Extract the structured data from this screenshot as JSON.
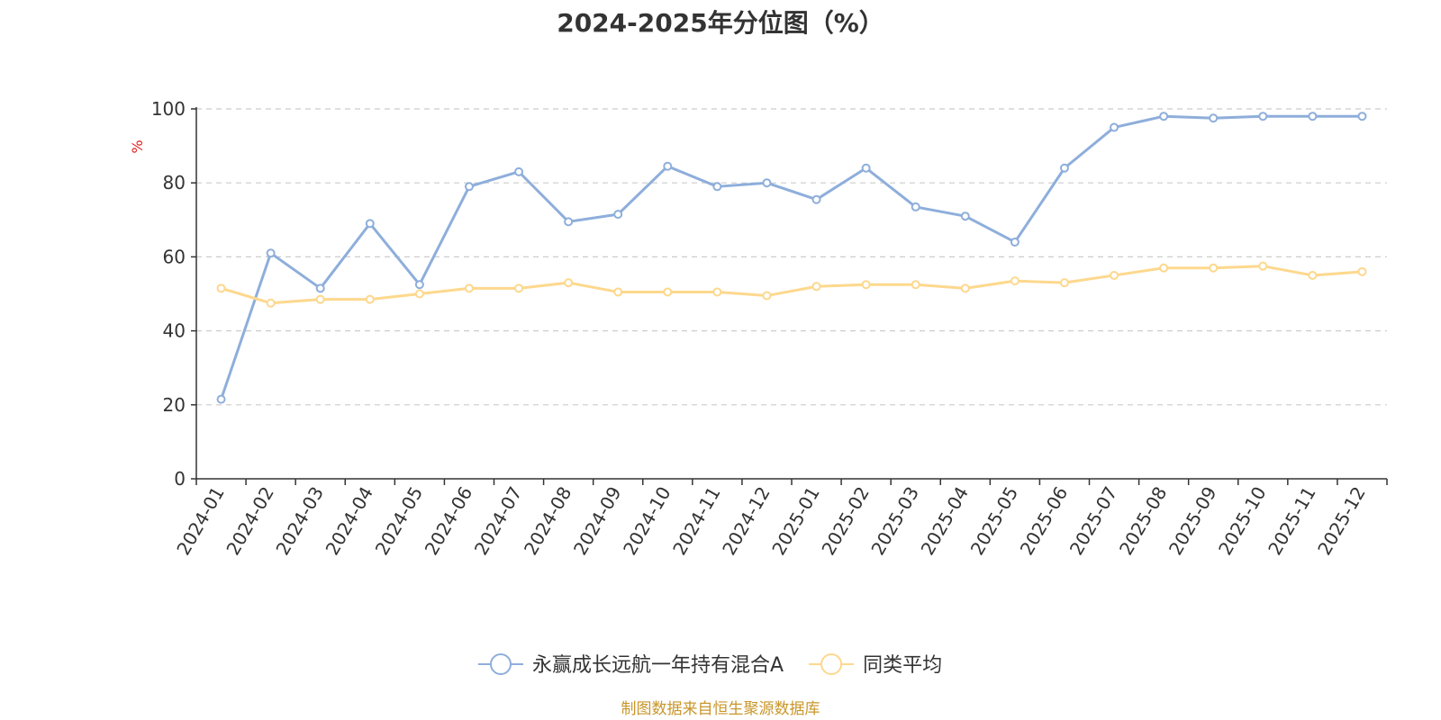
{
  "chart_data": {
    "type": "line",
    "title": "2024-2025年分位图（%）",
    "ylabel": "%",
    "xlabel": "",
    "ylim": [
      0,
      100
    ],
    "yticks": [
      0,
      20,
      40,
      60,
      80,
      100
    ],
    "grid": true,
    "legend_position": "bottom",
    "categories": [
      "2024-01",
      "2024-02",
      "2024-03",
      "2024-04",
      "2024-05",
      "2024-06",
      "2024-07",
      "2024-08",
      "2024-09",
      "2024-10",
      "2024-11",
      "2024-12",
      "2025-01",
      "2025-02",
      "2025-03",
      "2025-04",
      "2025-05",
      "2025-06",
      "2025-07",
      "2025-08",
      "2025-09",
      "2025-10",
      "2025-11",
      "2025-12"
    ],
    "series": [
      {
        "name": "永赢成长远航一年持有混合A",
        "color": "#8eaedb",
        "values": [
          21.5,
          61,
          51.5,
          69,
          52.5,
          79,
          83,
          69.5,
          71.5,
          84.5,
          79,
          80,
          75.5,
          84,
          73.5,
          71,
          64,
          84,
          95,
          98,
          97.5,
          98,
          98,
          98
        ]
      },
      {
        "name": "同类平均",
        "color": "#fdd88d",
        "values": [
          51.5,
          47.5,
          48.5,
          48.5,
          50,
          51.5,
          51.5,
          53,
          50.5,
          50.5,
          50.5,
          49.5,
          52,
          52.5,
          52.5,
          51.5,
          53.5,
          53,
          55,
          57,
          57,
          57.5,
          55,
          56
        ]
      }
    ]
  },
  "source_text": "制图数据来自恒生聚源数据库",
  "colors": {
    "axis": "#333333",
    "grid": "#cccccc",
    "ylabel": "#e02020",
    "source": "#c8962a"
  }
}
